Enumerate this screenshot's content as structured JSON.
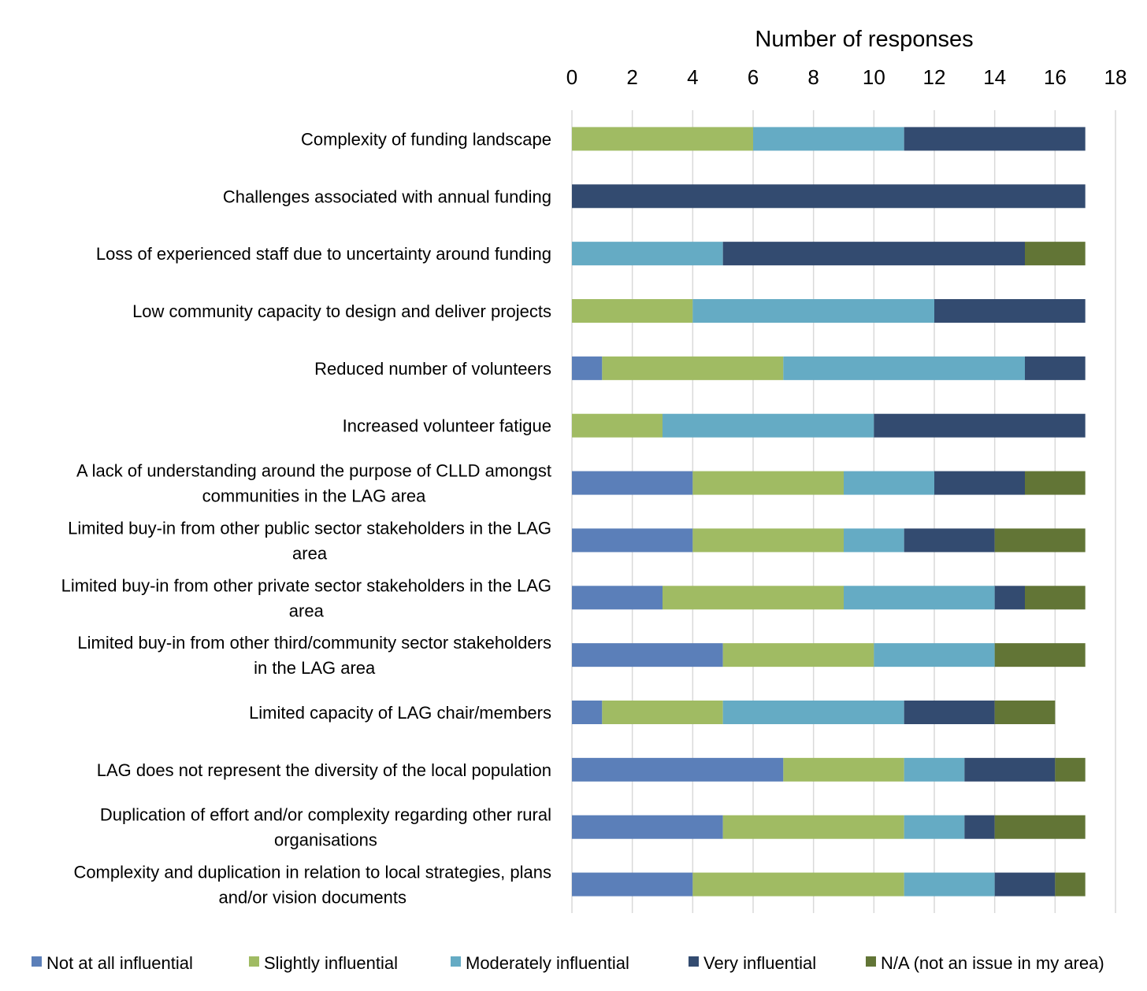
{
  "chart_data": {
    "type": "bar",
    "orientation": "horizontal",
    "stacked": true,
    "title": "",
    "xlabel": "Number of responses",
    "ylabel": "",
    "xlim": [
      0,
      18
    ],
    "x_ticks": [
      0,
      2,
      4,
      6,
      8,
      10,
      12,
      14,
      16,
      18
    ],
    "x_axis_position": "top",
    "grid": true,
    "legend_position": "bottom",
    "categories": [
      "Complexity of funding landscape",
      "Challenges associated with annual funding",
      "Loss of experienced staff due to uncertainty around funding",
      "Low community capacity to design and deliver projects",
      "Reduced number of volunteers",
      "Increased volunteer fatigue",
      "A lack of understanding around the purpose of CLLD amongst communities in the LAG area",
      "Limited buy-in from other public sector stakeholders in the LAG area",
      "Limited buy-in from other private sector stakeholders in the LAG area",
      "Limited buy-in from other third/community sector stakeholders in the LAG area",
      "Limited capacity of LAG chair/members",
      "LAG does not represent the diversity of the local population",
      "Duplication of effort and/or complexity regarding other rural organisations",
      "Complexity and duplication in relation to local strategies, plans and/or vision documents"
    ],
    "category_lines": [
      [
        "Complexity of funding landscape"
      ],
      [
        "Challenges associated with annual funding"
      ],
      [
        "Loss of experienced staff due to uncertainty around funding"
      ],
      [
        "Low community capacity to design and deliver projects"
      ],
      [
        "Reduced number of volunteers"
      ],
      [
        "Increased volunteer fatigue"
      ],
      [
        "A lack of understanding around the purpose of CLLD amongst",
        "communities in the LAG area"
      ],
      [
        "Limited buy-in from other public sector stakeholders in the LAG",
        "area"
      ],
      [
        "Limited buy-in from other private sector stakeholders in the LAG",
        "area"
      ],
      [
        "Limited buy-in from other third/community sector stakeholders",
        "in the LAG area"
      ],
      [
        "Limited capacity of LAG chair/members"
      ],
      [
        "LAG does not represent the diversity of the local population"
      ],
      [
        "Duplication of effort and/or complexity regarding other rural",
        "organisations"
      ],
      [
        "Complexity and duplication in relation to local strategies, plans",
        "and/or vision documents"
      ]
    ],
    "series": [
      {
        "name": "Not at all influential",
        "color": "#5b7fb9",
        "values": [
          0,
          0,
          0,
          0,
          1,
          0,
          4,
          4,
          3,
          5,
          1,
          7,
          5,
          4
        ]
      },
      {
        "name": "Slightly influential",
        "color": "#a0bb63",
        "values": [
          6,
          0,
          0,
          4,
          6,
          3,
          5,
          5,
          6,
          5,
          4,
          4,
          6,
          7
        ]
      },
      {
        "name": "Moderately influential",
        "color": "#65abc4",
        "values": [
          5,
          0,
          5,
          8,
          8,
          7,
          3,
          2,
          5,
          4,
          6,
          2,
          2,
          3
        ]
      },
      {
        "name": "Very influential",
        "color": "#334b70",
        "values": [
          6,
          17,
          10,
          5,
          2,
          7,
          3,
          3,
          1,
          0,
          3,
          3,
          1,
          2
        ]
      },
      {
        "name": "N/A (not an issue in my area)",
        "color": "#627536",
        "values": [
          0,
          0,
          2,
          0,
          0,
          0,
          2,
          3,
          2,
          3,
          2,
          1,
          3,
          1
        ]
      }
    ]
  }
}
